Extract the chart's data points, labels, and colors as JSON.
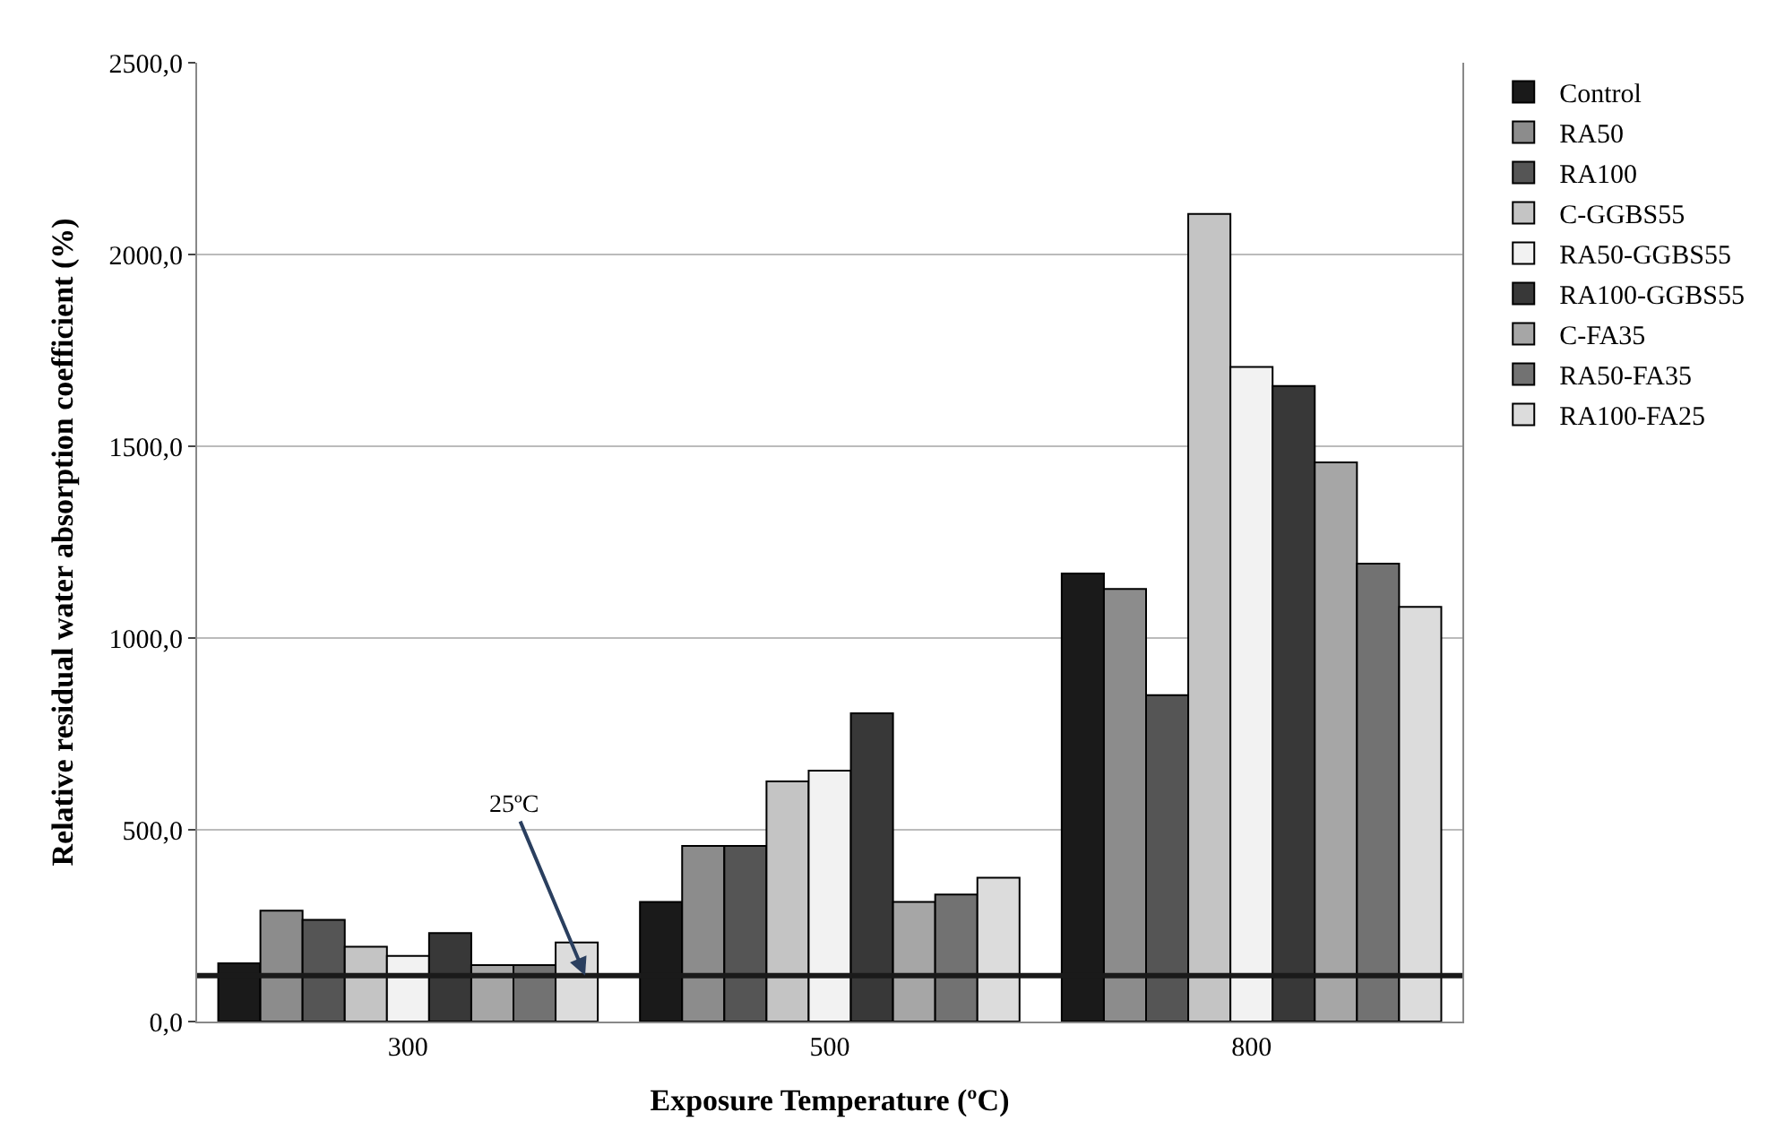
{
  "chart_data": {
    "type": "bar",
    "xlabel": "Exposure Temperature (ºC)",
    "ylabel": "Relative residual water absorption coefficient (%)",
    "categories": [
      "300",
      "500",
      "800"
    ],
    "series": [
      {
        "name": "Control",
        "color": "#1a1a1a",
        "values": [
          152,
          312,
          1168
        ]
      },
      {
        "name": "RA50",
        "color": "#8c8c8c",
        "values": [
          289,
          458,
          1128
        ]
      },
      {
        "name": "RA100",
        "color": "#555555",
        "values": [
          265,
          458,
          851
        ]
      },
      {
        "name": "C-GGBS55",
        "color": "#c4c4c4",
        "values": [
          195,
          626,
          2106
        ]
      },
      {
        "name": "RA50-GGBS55",
        "color": "#f2f2f2",
        "values": [
          171,
          654,
          1707
        ]
      },
      {
        "name": "RA100-GGBS55",
        "color": "#383838",
        "values": [
          231,
          804,
          1657
        ]
      },
      {
        "name": "C-FA35",
        "color": "#a6a6a6",
        "values": [
          147,
          312,
          1458
        ]
      },
      {
        "name": "RA50-FA35",
        "color": "#727272",
        "values": [
          147,
          331,
          1194
        ]
      },
      {
        "name": "RA100-FA25",
        "color": "#dcdcdc",
        "values": [
          206,
          375,
          1081
        ]
      }
    ],
    "ylim": [
      0,
      2500
    ],
    "yticks": [
      {
        "value": 0,
        "label": "0,0"
      },
      {
        "value": 500,
        "label": "500,0"
      },
      {
        "value": 1000,
        "label": "1000,0"
      },
      {
        "value": 1500,
        "label": "1500,0"
      },
      {
        "value": 2000,
        "label": "2000,0"
      },
      {
        "value": 2500,
        "label": "2500,0"
      }
    ],
    "ref_lines": [
      {
        "axis": "y",
        "value": 120,
        "label": "25ºC",
        "color": "#1a1a1a"
      }
    ],
    "grid": "y",
    "legend": "right"
  }
}
